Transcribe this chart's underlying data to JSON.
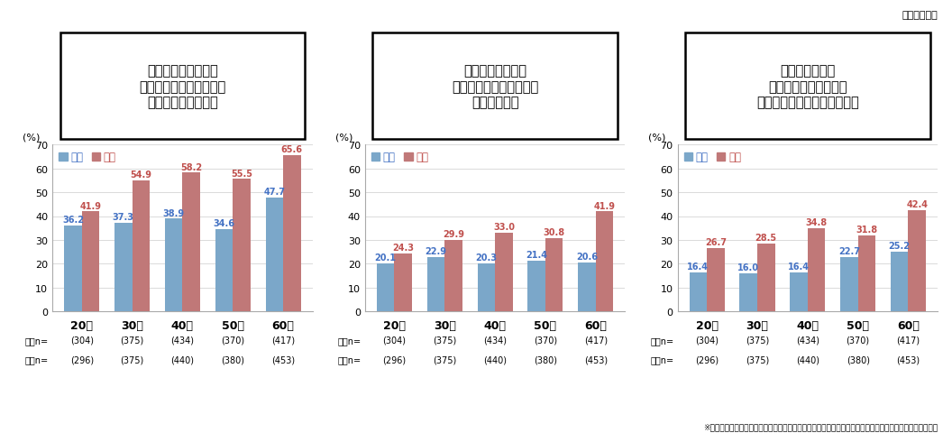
{
  "charts": [
    {
      "title": "何よりも心身ともに\n健康であることを第一と\n考えるようになった",
      "male_values": [
        36.2,
        37.3,
        38.9,
        34.6,
        47.7
      ],
      "female_values": [
        41.9,
        54.9,
        58.2,
        55.5,
        65.6
      ]
    },
    {
      "title": "体調が悪かったら\n無理はしないで静養する\nようになった",
      "male_values": [
        20.1,
        22.9,
        20.3,
        21.4,
        20.6
      ],
      "female_values": [
        24.3,
        29.9,
        33.0,
        30.8,
        41.9
      ]
    },
    {
      "title": "流行収束後も、\n人との距離が近い場は\n避けたいと思うようになった",
      "male_values": [
        16.4,
        16.0,
        16.4,
        22.7,
        25.2
      ],
      "female_values": [
        26.7,
        28.5,
        34.8,
        31.8,
        42.4
      ]
    }
  ],
  "categories": [
    "20代",
    "30代",
    "40代",
    "50代",
    "60代"
  ],
  "male_n": [
    "(304)",
    "(375)",
    "(434)",
    "(370)",
    "(417)"
  ],
  "female_n": [
    "(296)",
    "(375)",
    "(440)",
    "(380)",
    "(453)"
  ],
  "male_color": "#7BA7C9",
  "female_color": "#C07878",
  "male_label_color": "#4472C4",
  "female_label_color": "#C0504D",
  "male_label": "男性",
  "female_label": "女性",
  "ylabel": "(%)",
  "ylim": [
    0,
    70
  ],
  "yticks": [
    0,
    10,
    20,
    30,
    40,
    50,
    60,
    70
  ],
  "top_note": "（複数回答）",
  "bottom_note": "※㈱リサーチ・アンド・ディベロプメント「新型コロナウイルス流行による生活行動変化　自主調査」より"
}
